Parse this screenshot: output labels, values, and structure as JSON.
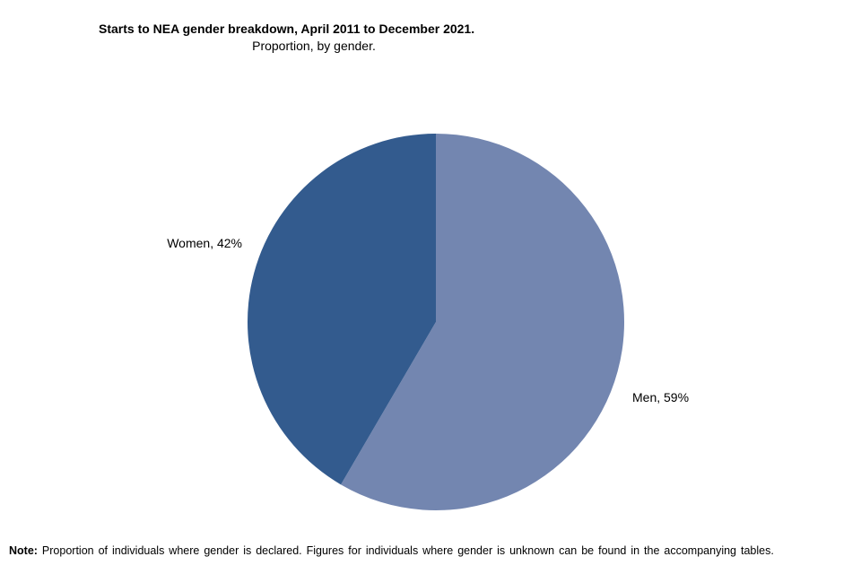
{
  "chart_data": {
    "type": "pie",
    "title": "Starts to NEA gender breakdown, April 2011 to December 2021.",
    "subtitle": "Proportion, by gender.",
    "slices": [
      {
        "label": "Men",
        "value": 59,
        "display": "Men, 59%",
        "color": "#7386b0"
      },
      {
        "label": "Women",
        "value": 42,
        "display": "Women, 42%",
        "color": "#335b8e"
      }
    ],
    "legend": "none"
  },
  "note": {
    "label": "Note:",
    "text": " Proportion of individuals where gender is declared. Figures for individuals where gender is unknown can be found in the accompanying tables."
  }
}
